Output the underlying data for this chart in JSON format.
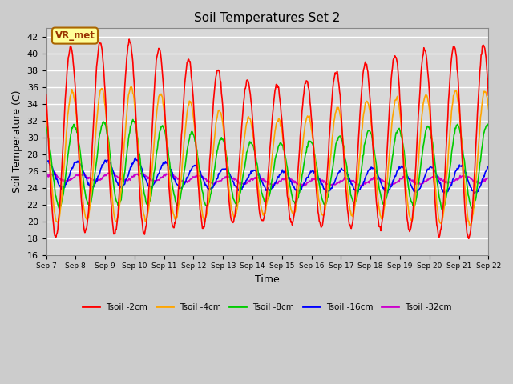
{
  "title": "Soil Temperatures Set 2",
  "xlabel": "Time",
  "ylabel": "Soil Temperature (C)",
  "ylim": [
    16,
    43
  ],
  "yticks": [
    16,
    18,
    20,
    22,
    24,
    26,
    28,
    30,
    32,
    34,
    36,
    38,
    40,
    42
  ],
  "x_tick_labels": [
    "Sep 7",
    "Sep 8",
    "Sep 9",
    "Sep 10",
    "Sep 11",
    "Sep 12",
    "Sep 13",
    "Sep 14",
    "Sep 15",
    "Sep 16",
    "Sep 17",
    "Sep 18",
    "Sep 19",
    "Sep 20",
    "Sep 21",
    "Sep 22"
  ],
  "series": {
    "Tsoil -2cm": {
      "color": "#FF0000",
      "linewidth": 1.2
    },
    "Tsoil -4cm": {
      "color": "#FFA500",
      "linewidth": 1.2
    },
    "Tsoil -8cm": {
      "color": "#00CC00",
      "linewidth": 1.2
    },
    "Tsoil -16cm": {
      "color": "#0000FF",
      "linewidth": 1.2
    },
    "Tsoil -32cm": {
      "color": "#CC00CC",
      "linewidth": 1.2
    }
  },
  "legend_box_facecolor": "#FFFF99",
  "legend_box_edgecolor": "#AA6600",
  "annotation_text": "VR_met",
  "annotation_color": "#993300",
  "figure_facecolor": "#CCCCCC",
  "plot_facecolor": "#D8D8D8",
  "grid_color": "#FFFFFF",
  "n_points": 720,
  "amp_envelope": [
    1.0,
    0.95,
    1.0,
    1.0,
    0.9,
    0.85,
    0.75,
    0.7,
    0.72,
    0.8,
    0.85,
    0.9,
    0.95,
    1.0,
    1.0
  ],
  "center_2cm": [
    29.5,
    29.8,
    30.0,
    30.0,
    29.5,
    29.0,
    28.5,
    28.0,
    28.0,
    28.5,
    29.0,
    29.5,
    29.5,
    29.5,
    29.5
  ],
  "center_4cm": [
    27.5,
    27.8,
    28.0,
    28.0,
    27.5,
    27.0,
    26.5,
    26.5,
    26.5,
    27.0,
    27.5,
    27.5,
    27.5,
    27.5,
    27.5
  ],
  "center_8cm": [
    26.5,
    26.7,
    27.0,
    27.0,
    26.5,
    26.0,
    25.8,
    25.8,
    25.8,
    26.0,
    26.5,
    26.5,
    26.5,
    26.5,
    26.5
  ],
  "center_16cm": [
    25.5,
    25.6,
    25.7,
    25.7,
    25.5,
    25.2,
    25.0,
    24.8,
    24.8,
    24.8,
    25.0,
    25.0,
    25.0,
    25.0,
    25.0
  ],
  "center_32cm": [
    25.2,
    25.2,
    25.3,
    25.3,
    25.2,
    25.0,
    24.9,
    24.8,
    24.7,
    24.7,
    24.7,
    24.8,
    24.9,
    25.0,
    25.0
  ]
}
